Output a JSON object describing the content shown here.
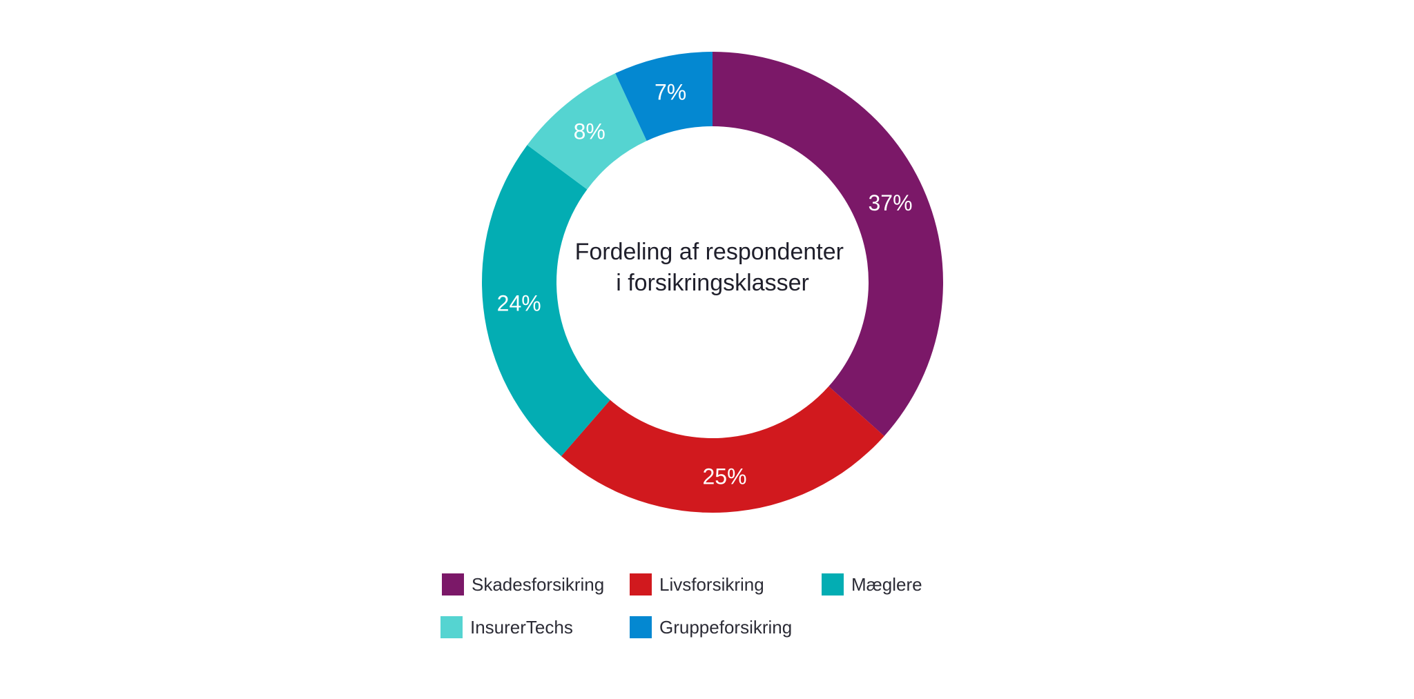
{
  "chart_data": {
    "type": "pie",
    "title_lines": [
      "Fordeling af respondenter",
      "i forsikringsklasser"
    ],
    "categories": [
      "Skadesforsikring",
      "Livsforsikring",
      "Mæglere",
      "InsurerTechs",
      "Gruppeforsikring"
    ],
    "values": [
      37,
      25,
      24,
      8,
      7
    ],
    "value_labels": [
      "37%",
      "25%",
      "24%",
      "8%",
      "7%"
    ],
    "colors": [
      "#7b1868",
      "#d1191e",
      "#03adb3",
      "#55d4d1",
      "#0488d1"
    ],
    "legend": {
      "items": [
        {
          "label": "Skadesforsikring",
          "color": "#7b1868"
        },
        {
          "label": "Livsforsikring",
          "color": "#d1191e"
        },
        {
          "label": "Mæglere",
          "color": "#03adb3"
        },
        {
          "label": "InsurerTechs",
          "color": "#55d4d1"
        },
        {
          "label": "Gruppeforsikring",
          "color": "#0488d1"
        }
      ]
    }
  }
}
